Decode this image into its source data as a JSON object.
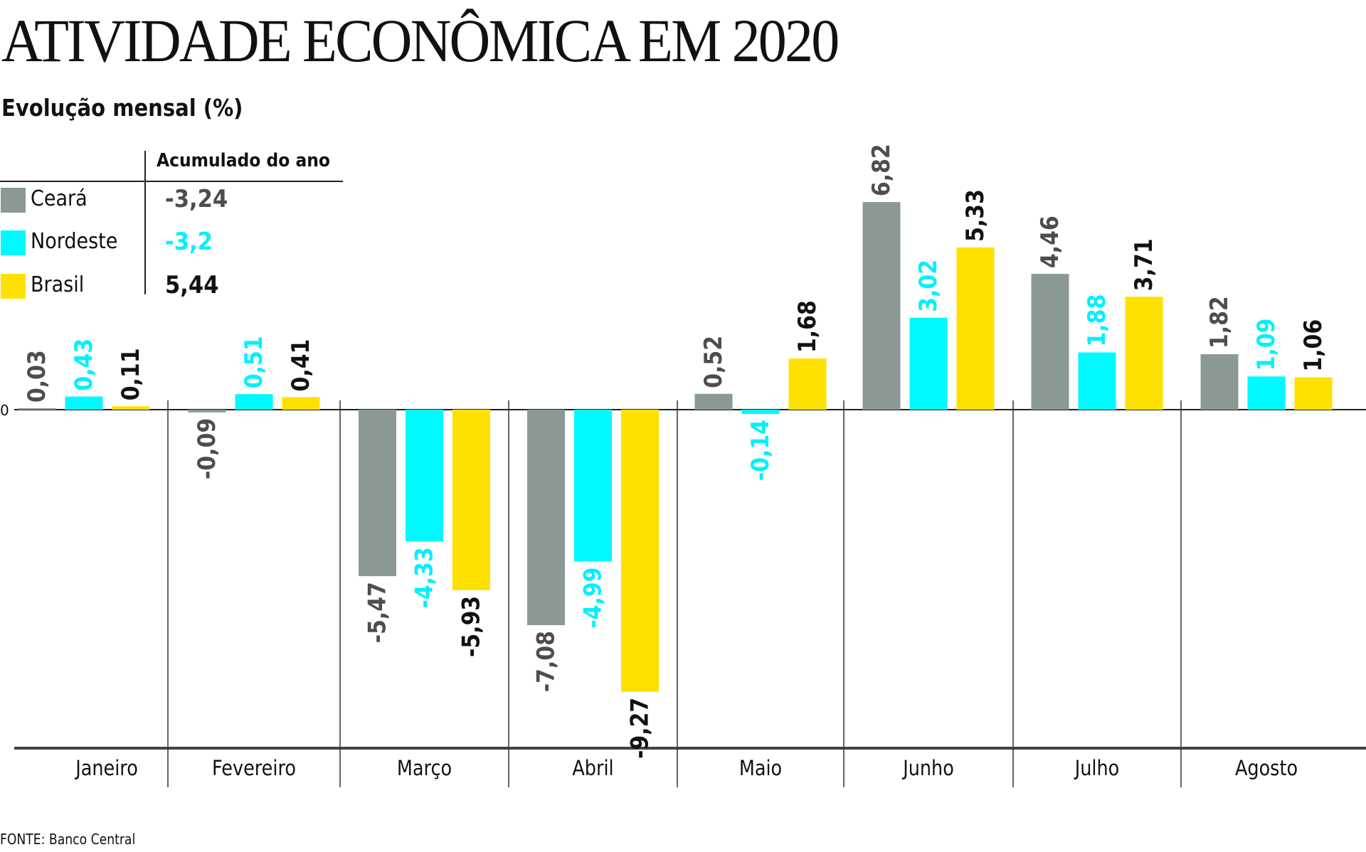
{
  "title": "ATIVIDADE ECONÔMICA EM 2020",
  "subtitle": "Evolução mensal (%)",
  "legend": {
    "header": "Acumulado do ano",
    "rows": [
      {
        "name": "Ceará",
        "value": "-3,24",
        "swatch_color": "#8a9896",
        "value_color": "#4d4d4d"
      },
      {
        "name": "Nordeste",
        "value": "-3,2",
        "swatch_color": "#00f8ff",
        "value_color": "#00f0ff"
      },
      {
        "name": "Brasil",
        "value": "5,44",
        "swatch_color": "#ffe100",
        "value_color": "#111111"
      }
    ]
  },
  "source": "FONTE: Banco Central",
  "chart_data": {
    "type": "bar",
    "title": "ATIVIDADE ECONÔMICA EM 2020",
    "subtitle": "Evolução mensal (%)",
    "xlabel": "",
    "ylabel": "",
    "zero_label": "0",
    "ylim": [
      -9.27,
      6.82
    ],
    "grid": false,
    "legend_position": "top-left",
    "categories": [
      "Janeiro",
      "Fevereiro",
      "Março",
      "Abril",
      "Maio",
      "Junho",
      "Julho",
      "Agosto"
    ],
    "series": [
      {
        "name": "Ceará",
        "color": "#8a9896",
        "label_color": "#4d4d4d",
        "values": [
          0.03,
          -0.09,
          -5.47,
          -7.08,
          0.52,
          6.82,
          4.46,
          1.82
        ],
        "labels": [
          "0,03",
          "-0,09",
          "-5,47",
          "-7,08",
          "0,52",
          "6,82",
          "4,46",
          "1,82"
        ]
      },
      {
        "name": "Nordeste",
        "color": "#00f8ff",
        "label_color": "#00f0ff",
        "values": [
          0.43,
          0.51,
          -4.33,
          -4.99,
          -0.14,
          3.02,
          1.88,
          1.09
        ],
        "labels": [
          "0,43",
          "0,51",
          "-4,33",
          "-4,99",
          "-0,14",
          "3,02",
          "1,88",
          "1,09"
        ]
      },
      {
        "name": "Brasil",
        "color": "#ffe100",
        "label_color": "#111111",
        "values": [
          0.11,
          0.41,
          -5.93,
          -9.27,
          1.68,
          5.33,
          3.71,
          1.06
        ],
        "labels": [
          "0,11",
          "0,41",
          "-5,93",
          "-9,27",
          "1,68",
          "5,33",
          "3,71",
          "1,06"
        ]
      }
    ]
  }
}
